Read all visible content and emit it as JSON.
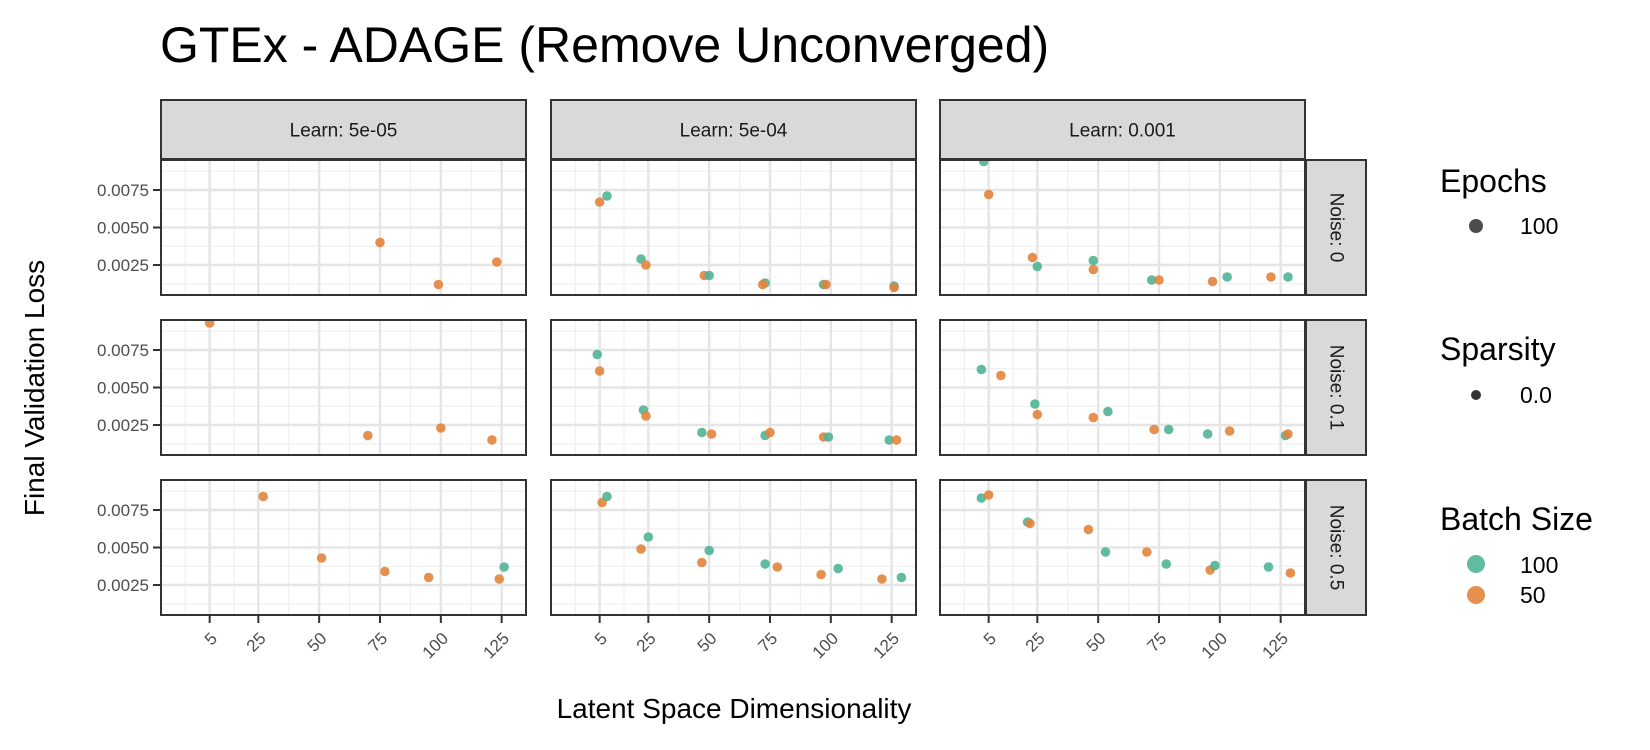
{
  "chart_data": {
    "type": "scatter",
    "title": "GTEx - ADAGE (Remove Unconverged)",
    "xlabel": "Latent Space Dimensionality",
    "ylabel": "Final Validation Loss",
    "x_ticks": [
      5,
      25,
      50,
      75,
      100,
      125
    ],
    "y_ticks": [
      "0.0025",
      "0.0050",
      "0.0075"
    ],
    "xlim": [
      -15,
      135
    ],
    "ylim": [
      0.0005,
      0.0095
    ],
    "grid": true,
    "legend_position": "right",
    "colors": {
      "100": "#4fb496",
      "50": "#e3843d"
    },
    "col_facets": [
      "Learn: 5e-05",
      "Learn: 5e-04",
      "Learn: 0.001"
    ],
    "row_facets": [
      "Noise: 0",
      "Noise: 0.1",
      "Noise: 0.5"
    ],
    "legend": {
      "epochs": {
        "title": "Epochs",
        "items": [
          "100"
        ]
      },
      "sparsity": {
        "title": "Sparsity",
        "items": [
          "0.0"
        ]
      },
      "batch_size": {
        "title": "Batch Size",
        "items": [
          "100",
          "50"
        ]
      }
    },
    "panels": [
      {
        "row": 0,
        "col": 0,
        "points": [
          {
            "x": 75,
            "y": 0.004,
            "batch": "50"
          },
          {
            "x": 99,
            "y": 0.0012,
            "batch": "50"
          },
          {
            "x": 123,
            "y": 0.0027,
            "batch": "50"
          }
        ]
      },
      {
        "row": 0,
        "col": 1,
        "points": [
          {
            "x": 5,
            "y": 0.0067,
            "batch": "50"
          },
          {
            "x": 8,
            "y": 0.0071,
            "batch": "100"
          },
          {
            "x": 22,
            "y": 0.0029,
            "batch": "100"
          },
          {
            "x": 24,
            "y": 0.0025,
            "batch": "50"
          },
          {
            "x": 48,
            "y": 0.0018,
            "batch": "50"
          },
          {
            "x": 50,
            "y": 0.0018,
            "batch": "100"
          },
          {
            "x": 73,
            "y": 0.0013,
            "batch": "100"
          },
          {
            "x": 72,
            "y": 0.0012,
            "batch": "50"
          },
          {
            "x": 97,
            "y": 0.0012,
            "batch": "100"
          },
          {
            "x": 98,
            "y": 0.0012,
            "batch": "50"
          },
          {
            "x": 126,
            "y": 0.0011,
            "batch": "100"
          },
          {
            "x": 126,
            "y": 0.001,
            "batch": "50"
          }
        ]
      },
      {
        "row": 0,
        "col": 2,
        "points": [
          {
            "x": 3,
            "y": 0.0094,
            "batch": "100"
          },
          {
            "x": 5,
            "y": 0.0072,
            "batch": "50"
          },
          {
            "x": 23,
            "y": 0.003,
            "batch": "50"
          },
          {
            "x": 25,
            "y": 0.0024,
            "batch": "100"
          },
          {
            "x": 48,
            "y": 0.0028,
            "batch": "100"
          },
          {
            "x": 48,
            "y": 0.0022,
            "batch": "50"
          },
          {
            "x": 72,
            "y": 0.0015,
            "batch": "100"
          },
          {
            "x": 75,
            "y": 0.0015,
            "batch": "50"
          },
          {
            "x": 97,
            "y": 0.0014,
            "batch": "50"
          },
          {
            "x": 103,
            "y": 0.0017,
            "batch": "100"
          },
          {
            "x": 121,
            "y": 0.0017,
            "batch": "50"
          },
          {
            "x": 128,
            "y": 0.0017,
            "batch": "100"
          }
        ]
      },
      {
        "row": 1,
        "col": 0,
        "points": [
          {
            "x": 5,
            "y": 0.0093,
            "batch": "50"
          },
          {
            "x": 70,
            "y": 0.0018,
            "batch": "50"
          },
          {
            "x": 100,
            "y": 0.0023,
            "batch": "50"
          },
          {
            "x": 121,
            "y": 0.0015,
            "batch": "50"
          }
        ]
      },
      {
        "row": 1,
        "col": 1,
        "points": [
          {
            "x": 4,
            "y": 0.0072,
            "batch": "100"
          },
          {
            "x": 5,
            "y": 0.0061,
            "batch": "50"
          },
          {
            "x": 23,
            "y": 0.0035,
            "batch": "100"
          },
          {
            "x": 24,
            "y": 0.0031,
            "batch": "50"
          },
          {
            "x": 47,
            "y": 0.002,
            "batch": "100"
          },
          {
            "x": 51,
            "y": 0.0019,
            "batch": "50"
          },
          {
            "x": 73,
            "y": 0.0018,
            "batch": "100"
          },
          {
            "x": 75,
            "y": 0.002,
            "batch": "50"
          },
          {
            "x": 97,
            "y": 0.0017,
            "batch": "50"
          },
          {
            "x": 99,
            "y": 0.0017,
            "batch": "100"
          },
          {
            "x": 124,
            "y": 0.0015,
            "batch": "100"
          },
          {
            "x": 127,
            "y": 0.0015,
            "batch": "50"
          }
        ]
      },
      {
        "row": 1,
        "col": 2,
        "points": [
          {
            "x": 2,
            "y": 0.0062,
            "batch": "100"
          },
          {
            "x": 10,
            "y": 0.0058,
            "batch": "50"
          },
          {
            "x": 24,
            "y": 0.0039,
            "batch": "100"
          },
          {
            "x": 25,
            "y": 0.0032,
            "batch": "50"
          },
          {
            "x": 48,
            "y": 0.003,
            "batch": "50"
          },
          {
            "x": 54,
            "y": 0.0034,
            "batch": "100"
          },
          {
            "x": 73,
            "y": 0.0022,
            "batch": "50"
          },
          {
            "x": 79,
            "y": 0.0022,
            "batch": "100"
          },
          {
            "x": 95,
            "y": 0.0019,
            "batch": "100"
          },
          {
            "x": 104,
            "y": 0.0021,
            "batch": "50"
          },
          {
            "x": 127,
            "y": 0.0018,
            "batch": "100"
          },
          {
            "x": 128,
            "y": 0.0019,
            "batch": "50"
          }
        ]
      },
      {
        "row": 2,
        "col": 0,
        "points": [
          {
            "x": 27,
            "y": 0.0084,
            "batch": "50"
          },
          {
            "x": 51,
            "y": 0.0043,
            "batch": "50"
          },
          {
            "x": 77,
            "y": 0.0034,
            "batch": "50"
          },
          {
            "x": 95,
            "y": 0.003,
            "batch": "50"
          },
          {
            "x": 124,
            "y": 0.0029,
            "batch": "50"
          },
          {
            "x": 126,
            "y": 0.0037,
            "batch": "100"
          }
        ]
      },
      {
        "row": 2,
        "col": 1,
        "points": [
          {
            "x": 6,
            "y": 0.008,
            "batch": "50"
          },
          {
            "x": 8,
            "y": 0.0084,
            "batch": "100"
          },
          {
            "x": 22,
            "y": 0.0049,
            "batch": "50"
          },
          {
            "x": 25,
            "y": 0.0057,
            "batch": "100"
          },
          {
            "x": 47,
            "y": 0.004,
            "batch": "50"
          },
          {
            "x": 50,
            "y": 0.0048,
            "batch": "100"
          },
          {
            "x": 73,
            "y": 0.0039,
            "batch": "100"
          },
          {
            "x": 78,
            "y": 0.0037,
            "batch": "50"
          },
          {
            "x": 96,
            "y": 0.0032,
            "batch": "50"
          },
          {
            "x": 103,
            "y": 0.0036,
            "batch": "100"
          },
          {
            "x": 121,
            "y": 0.0029,
            "batch": "50"
          },
          {
            "x": 129,
            "y": 0.003,
            "batch": "100"
          }
        ]
      },
      {
        "row": 2,
        "col": 2,
        "points": [
          {
            "x": 2,
            "y": 0.0083,
            "batch": "100"
          },
          {
            "x": 5,
            "y": 0.0085,
            "batch": "50"
          },
          {
            "x": 21,
            "y": 0.0067,
            "batch": "100"
          },
          {
            "x": 22,
            "y": 0.0066,
            "batch": "50"
          },
          {
            "x": 46,
            "y": 0.0062,
            "batch": "50"
          },
          {
            "x": 53,
            "y": 0.0047,
            "batch": "100"
          },
          {
            "x": 70,
            "y": 0.0047,
            "batch": "50"
          },
          {
            "x": 78,
            "y": 0.0039,
            "batch": "100"
          },
          {
            "x": 96,
            "y": 0.0035,
            "batch": "50"
          },
          {
            "x": 98,
            "y": 0.0038,
            "batch": "100"
          },
          {
            "x": 120,
            "y": 0.0037,
            "batch": "100"
          },
          {
            "x": 129,
            "y": 0.0033,
            "batch": "50"
          }
        ]
      }
    ]
  }
}
